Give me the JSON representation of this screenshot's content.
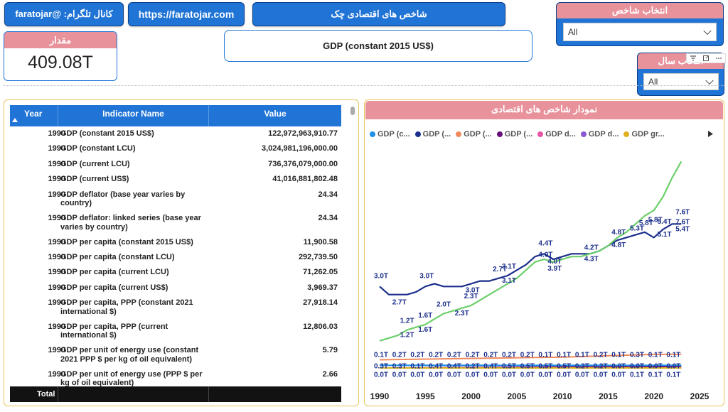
{
  "header": {
    "telegram_label": "کانال تلگرام: @faratojar",
    "website_label": "https://faratojar.com",
    "dashboard_title": "شاخص های اقتصادی چک"
  },
  "kpi": {
    "label": "مقدار",
    "value": "409.08T"
  },
  "selected_indicator_title": "GDP (constant 2015 US$)",
  "slicer_indicator": {
    "title": "انتخاب شاخص",
    "value": "All"
  },
  "slicer_year": {
    "title": "انتخاب سال",
    "value": "All"
  },
  "table": {
    "columns": [
      "Year",
      "Indicator Name",
      "Value"
    ],
    "rows": [
      {
        "year": "1990",
        "name": "GDP (constant 2015 US$)",
        "value": "122,972,963,910.77"
      },
      {
        "year": "1990",
        "name": "GDP (constant LCU)",
        "value": "3,024,981,196,000.00"
      },
      {
        "year": "1990",
        "name": "GDP (current LCU)",
        "value": "736,376,079,000.00"
      },
      {
        "year": "1990",
        "name": "GDP (current US$)",
        "value": "41,016,881,802.48"
      },
      {
        "year": "1990",
        "name": "GDP deflator (base year varies by country)",
        "value": "24.34"
      },
      {
        "year": "1990",
        "name": "GDP deflator: linked series (base year varies by country)",
        "value": "24.34"
      },
      {
        "year": "1990",
        "name": "GDP per capita (constant 2015 US$)",
        "value": "11,900.58"
      },
      {
        "year": "1990",
        "name": "GDP per capita (constant LCU)",
        "value": "292,739.50"
      },
      {
        "year": "1990",
        "name": "GDP per capita (current LCU)",
        "value": "71,262.05"
      },
      {
        "year": "1990",
        "name": "GDP per capita (current US$)",
        "value": "3,969.37"
      },
      {
        "year": "1990",
        "name": "GDP per capita, PPP (constant 2021 international $)",
        "value": "27,918.14"
      },
      {
        "year": "1990",
        "name": "GDP per capita, PPP (current international $)",
        "value": "12,806.03"
      },
      {
        "year": "1990",
        "name": "GDP per unit of energy use (constant 2021 PPP $ per kg of oil equivalent)",
        "value": "5.79"
      },
      {
        "year": "1990",
        "name": "GDP per unit of energy use (PPP $ per kg of oil equivalent)",
        "value": "2.66"
      }
    ],
    "footer_label": "Total"
  },
  "chart_panel_title": "نمودار شاخص های اقتصادی",
  "chart_data": {
    "type": "line",
    "title": "نمودار شاخص های اقتصادی",
    "legend_position": "top",
    "x_ticks": [
      "1990",
      "1995",
      "2000",
      "2005",
      "2010",
      "2015",
      "2020",
      "2025"
    ],
    "xlim": [
      1990,
      2025
    ],
    "ylim": [
      0,
      8
    ],
    "grid": false,
    "series": [
      {
        "name": "GDP (c...",
        "color": "#1e90e8",
        "x": [
          1990,
          1995,
          2000,
          2005,
          2010,
          2015,
          2020,
          2023
        ],
        "y": [
          0.1,
          0.1,
          0.1,
          0.1,
          0.1,
          0.1,
          0.1,
          0.1
        ]
      },
      {
        "name": "GDP (...",
        "color": "#1c2f8c",
        "x": [
          1990,
          1991,
          1992,
          1993,
          1994,
          1995,
          1996,
          1997,
          1998,
          1999,
          2000,
          2001,
          2002,
          2003,
          2004,
          2005,
          2006,
          2007,
          2008,
          2009,
          2010,
          2011,
          2012,
          2013,
          2014,
          2015,
          2016,
          2017,
          2018,
          2019,
          2020,
          2021,
          2022,
          2023
        ],
        "y": [
          3.0,
          2.7,
          2.7,
          2.7,
          2.8,
          3.0,
          3.1,
          3.0,
          3.0,
          3.0,
          3.1,
          3.2,
          3.2,
          3.3,
          3.4,
          3.6,
          3.8,
          4.1,
          4.2,
          4.0,
          4.1,
          4.2,
          4.2,
          4.2,
          4.3,
          4.5,
          4.7,
          4.8,
          4.9,
          5.0,
          4.8,
          5.1,
          5.3,
          5.3
        ]
      },
      {
        "name": "GDP (...",
        "color": "#f08a5d",
        "x": [
          1990,
          2000,
          2010,
          2020,
          2023
        ],
        "y": [
          0.3,
          0.35,
          0.4,
          0.5,
          0.5
        ]
      },
      {
        "name": "GDP (...",
        "color": "#6a0f7a",
        "x": [
          1990,
          2000,
          2010,
          2020,
          2023
        ],
        "y": [
          0.0,
          0.02,
          0.04,
          0.05,
          0.06
        ]
      },
      {
        "name": "GDP d...",
        "color": "#e455a6",
        "x": [
          1990,
          2000,
          2010,
          2020,
          2023
        ],
        "y": [
          0.0,
          0.0,
          0.0,
          0.0,
          0.0
        ]
      },
      {
        "name": "GDP d...",
        "color": "#8a58d0",
        "x": [
          1990,
          2000,
          2010,
          2020,
          2023
        ],
        "y": [
          0.0,
          0.0,
          0.0,
          0.0,
          0.0
        ]
      },
      {
        "name": "GDP gr...",
        "color": "#e0b020",
        "x": [
          1990,
          2000,
          2010,
          2020,
          2023
        ],
        "y": [
          0.0,
          0.0,
          0.0,
          0.0,
          0.0
        ]
      },
      {
        "name": "",
        "color": "#6ccf6a",
        "x": [
          1990,
          1991,
          1992,
          1993,
          1994,
          1995,
          1996,
          1997,
          1998,
          1999,
          2000,
          2001,
          2002,
          2003,
          2004,
          2005,
          2006,
          2007,
          2008,
          2009,
          2010,
          2011,
          2012,
          2013,
          2014,
          2015,
          2016,
          2017,
          2018,
          2019,
          2020,
          2021,
          2022,
          2023
        ],
        "y": [
          1.0,
          1.1,
          1.2,
          1.4,
          1.5,
          1.6,
          1.8,
          2.0,
          2.1,
          2.2,
          2.3,
          2.5,
          2.7,
          2.9,
          3.1,
          3.3,
          3.6,
          3.9,
          4.0,
          3.9,
          4.0,
          4.1,
          4.1,
          4.2,
          4.3,
          4.5,
          4.8,
          5.0,
          5.3,
          5.6,
          5.8,
          6.3,
          7.0,
          7.6
        ]
      }
    ],
    "data_labels": [
      "3.0T",
      "2.7T",
      "3.0T",
      "3.0T",
      "2.7T",
      "3.1T",
      "3.1T",
      "4.4T",
      "4.0T",
      "4.0T",
      "3.9T",
      "4.2T",
      "4.3T",
      "4.8T",
      "4.8T",
      "5.3T",
      "5.8T",
      "5.8T",
      "5.4T",
      "5.1T",
      "5.4T",
      "7.6T",
      "7.6T",
      "1.2T",
      "1.2T",
      "1.6T",
      "1.6T",
      "2.0T",
      "2.3T",
      "2.3T",
      "0.1T",
      "0.3T",
      "0.1T",
      "0.1T",
      "0.3T",
      "0.3T",
      "0.1T",
      "0.4T",
      "0.4T",
      "0.2T",
      "0.4T",
      "0.5T",
      "0.5T",
      "0.5T",
      "0.5T",
      "0.2T",
      "0.2T",
      "0.0T",
      "0.0T",
      "0.0T",
      "0.0T",
      "0.0T",
      "0.0T",
      "0.0T",
      "0.0T",
      "0.0T",
      "0.0T",
      "0.0T",
      "0.0T",
      "0.0T",
      "0.0T",
      "0.0T",
      "0.0T",
      "0.0T",
      "0.0T",
      "0.1T",
      "0.1T",
      "0.1T",
      "0.1T",
      "0.2T",
      "0.2T",
      "0.2T",
      "0.2T",
      "0.2T",
      "0.2T",
      "0.2T",
      "0.2T",
      "0.1T",
      "0.1T",
      "0.1T",
      "0.2T"
    ]
  },
  "colors": {
    "accent_blue": "#1f74d6",
    "slicer_header_pink": "#e8929b",
    "panel_border_gold": "#e6c65c",
    "line_green": "#6ccf6a",
    "line_navy": "#1c2f8c"
  },
  "icons": [
    "filter-icon",
    "focus-mode-icon",
    "more-options-icon",
    "sort-asc-icon",
    "chevron-down-icon",
    "legend-next-icon"
  ]
}
